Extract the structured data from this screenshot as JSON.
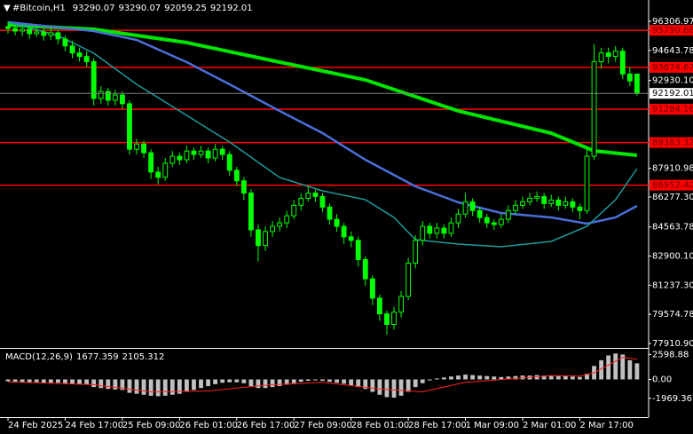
{
  "chart_data": {
    "type": "candlestick",
    "title": "#Bitcoin,H1",
    "candles": [
      [
        96000,
        96300,
        95600,
        95900
      ],
      [
        95900,
        96100,
        95500,
        95750
      ],
      [
        95750,
        96050,
        95450,
        95850
      ],
      [
        95850,
        96000,
        95300,
        95600
      ],
      [
        95600,
        96000,
        95400,
        95700
      ],
      [
        95700,
        95900,
        95200,
        95500
      ],
      [
        95500,
        95950,
        95250,
        95650
      ],
      [
        95650,
        95800,
        95000,
        95300
      ],
      [
        95300,
        95500,
        94600,
        94900
      ],
      [
        94900,
        95200,
        94200,
        94500
      ],
      [
        94500,
        94800,
        94000,
        94300
      ],
      [
        94300,
        94600,
        93700,
        94000
      ],
      [
        94000,
        94200,
        91500,
        91900
      ],
      [
        91900,
        92600,
        91600,
        92300
      ],
      [
        92300,
        92500,
        91500,
        91800
      ],
      [
        91800,
        92400,
        91500,
        92100
      ],
      [
        92100,
        92300,
        91300,
        91600
      ],
      [
        91600,
        91800,
        88700,
        89000
      ],
      [
        89000,
        89600,
        88700,
        89300
      ],
      [
        89300,
        89500,
        88500,
        88800
      ],
      [
        88800,
        89000,
        87300,
        87700
      ],
      [
        87700,
        88000,
        87000,
        87400
      ],
      [
        87400,
        88500,
        87200,
        88200
      ],
      [
        88200,
        88900,
        88000,
        88600
      ],
      [
        88600,
        88800,
        88100,
        88400
      ],
      [
        88400,
        89200,
        88200,
        88900
      ],
      [
        88900,
        89100,
        88400,
        88700
      ],
      [
        88700,
        89200,
        88500,
        88900
      ],
      [
        88900,
        89100,
        88200,
        88500
      ],
      [
        88500,
        89300,
        88300,
        89000
      ],
      [
        89000,
        89200,
        88400,
        88700
      ],
      [
        88700,
        88900,
        87500,
        87800
      ],
      [
        87800,
        88000,
        86900,
        87200
      ],
      [
        87200,
        87400,
        86100,
        86500
      ],
      [
        86500,
        86700,
        84000,
        84400
      ],
      [
        84400,
        84700,
        82600,
        83500
      ],
      [
        83500,
        84600,
        83200,
        84300
      ],
      [
        84300,
        84900,
        84000,
        84600
      ],
      [
        84600,
        85100,
        84300,
        84800
      ],
      [
        84800,
        85500,
        84500,
        85200
      ],
      [
        85200,
        86100,
        85000,
        85800
      ],
      [
        85800,
        86500,
        85500,
        86200
      ],
      [
        86200,
        86900,
        86000,
        86500
      ],
      [
        86500,
        86700,
        86000,
        86300
      ],
      [
        86300,
        86500,
        85400,
        85700
      ],
      [
        85700,
        85900,
        84700,
        85000
      ],
      [
        85000,
        85300,
        84300,
        84600
      ],
      [
        84600,
        84800,
        83600,
        84000
      ],
      [
        84000,
        84300,
        83400,
        83800
      ],
      [
        83800,
        84000,
        82300,
        82700
      ],
      [
        82700,
        82900,
        81200,
        81600
      ],
      [
        81600,
        81800,
        80100,
        80500
      ],
      [
        80500,
        80700,
        79200,
        79600
      ],
      [
        79600,
        79800,
        78400,
        79000
      ],
      [
        79000,
        80000,
        78700,
        79700
      ],
      [
        79700,
        80900,
        79400,
        80600
      ],
      [
        80600,
        82800,
        80400,
        82500
      ],
      [
        82500,
        84100,
        82200,
        83800
      ],
      [
        83800,
        84900,
        83500,
        84600
      ],
      [
        84600,
        84800,
        83900,
        84200
      ],
      [
        84200,
        84800,
        83900,
        84500
      ],
      [
        84500,
        84700,
        83900,
        84200
      ],
      [
        84200,
        85100,
        84000,
        84800
      ],
      [
        84800,
        85600,
        84500,
        85300
      ],
      [
        85300,
        86500,
        85100,
        86000
      ],
      [
        86000,
        86200,
        85200,
        85500
      ],
      [
        85500,
        85700,
        84800,
        85100
      ],
      [
        85100,
        85300,
        84500,
        84800
      ],
      [
        84800,
        85000,
        84400,
        84700
      ],
      [
        84700,
        85300,
        84500,
        85000
      ],
      [
        85000,
        85800,
        84800,
        85500
      ],
      [
        85500,
        86100,
        85300,
        85800
      ],
      [
        85800,
        86300,
        85600,
        86000
      ],
      [
        86000,
        86500,
        85800,
        86200
      ],
      [
        86200,
        86600,
        86000,
        86300
      ],
      [
        86300,
        86500,
        85600,
        85900
      ],
      [
        85900,
        86400,
        85700,
        86100
      ],
      [
        86100,
        86300,
        85500,
        85800
      ],
      [
        85800,
        86300,
        85600,
        86000
      ],
      [
        86000,
        86200,
        85400,
        85700
      ],
      [
        85700,
        85900,
        85000,
        85500
      ],
      [
        85500,
        89000,
        85300,
        88600
      ],
      [
        88600,
        95000,
        88400,
        94000
      ],
      [
        94000,
        94800,
        93600,
        94500
      ],
      [
        94500,
        94800,
        93900,
        94300
      ],
      [
        94300,
        94900,
        94000,
        94600
      ],
      [
        94600,
        94800,
        93000,
        93300
      ],
      [
        93300,
        93700,
        92600,
        92900
      ],
      [
        93290.07,
        93290.07,
        92059.25,
        92192.01
      ]
    ],
    "candle_color": "#00ff00",
    "ylim": [
      77657,
      97523
    ],
    "yticks": [
      {
        "value": 96306.97,
        "label": "96306.97"
      },
      {
        "value": 94643.78,
        "label": "94643.78"
      },
      {
        "value": 92930.1,
        "label": "92930.10"
      },
      {
        "value": 87910.98,
        "label": "87910.98"
      },
      {
        "value": 86277.3,
        "label": "86277.30"
      },
      {
        "value": 84563.78,
        "label": "84563.78"
      },
      {
        "value": 82900.1,
        "label": "82900.10"
      },
      {
        "value": 81237.3,
        "label": "81237.30"
      },
      {
        "value": 79574.78,
        "label": "79574.78"
      },
      {
        "value": 77910.9,
        "label": "77910.90"
      }
    ],
    "xticks": [
      {
        "value": 0,
        "label": "24 Feb 2025"
      },
      {
        "value": 8,
        "label": "24 Feb 17:00"
      },
      {
        "value": 16,
        "label": "25 Feb 09:00"
      },
      {
        "value": 24,
        "label": "26 Feb 01:00"
      },
      {
        "value": 32,
        "label": "26 Feb 17:00"
      },
      {
        "value": 40,
        "label": "27 Feb 09:00"
      },
      {
        "value": 48,
        "label": "28 Feb 01:00"
      },
      {
        "value": 56,
        "label": "28 Feb 17:00"
      },
      {
        "value": 64,
        "label": "1 Mar 09:00"
      },
      {
        "value": 72,
        "label": "2 Mar 01:00"
      },
      {
        "value": 80,
        "label": "2 Mar 17:00"
      }
    ],
    "levels": [
      95790.66,
      93674.67,
      91284.16,
      89383.32,
      {
        "value": 86952.4,
        "label": "86952.40"
      }
    ],
    "level_color": "#ff0000",
    "moving_averages": [
      {
        "color": "#00e600",
        "width": 4,
        "x": [
          0,
          12,
          25,
          38,
          50,
          63,
          76,
          82,
          88
        ],
        "values": [
          96104,
          95851,
          95091,
          93976,
          92962,
          91188,
          89921,
          88907,
          88654
        ]
      },
      {
        "color": "#4a6fd8",
        "width": 2.5,
        "x": [
          0,
          12,
          18,
          25,
          31,
          38,
          44,
          50,
          57,
          63,
          69,
          76,
          81,
          85,
          88
        ],
        "values": [
          96256,
          95749,
          95243,
          93976,
          92709,
          91188,
          89921,
          88400,
          86880,
          85968,
          85360,
          85107,
          84752,
          85107,
          85766
        ]
      },
      {
        "color": "#1f9a9a",
        "width": 1.5,
        "x": [
          0,
          7,
          12,
          18,
          25,
          31,
          38,
          44,
          50,
          54,
          57,
          63,
          69,
          76,
          81,
          85,
          88
        ],
        "values": [
          96256,
          95496,
          94483,
          92709,
          90935,
          89414,
          87387,
          86627,
          86120,
          85107,
          83839,
          83586,
          83434,
          83738,
          84600,
          86120,
          87894
        ]
      }
    ],
    "macd": {
      "title": "MACD(12,26,9)",
      "histogram": [
        -200,
        -250,
        -300,
        -300,
        -300,
        -350,
        -350,
        -350,
        -400,
        -450,
        -500,
        -550,
        -800,
        -900,
        -1000,
        -1050,
        -1100,
        -1400,
        -1500,
        -1600,
        -1700,
        -1750,
        -1700,
        -1600,
        -1500,
        -1300,
        -1100,
        -900,
        -700,
        -500,
        -350,
        -300,
        -300,
        -400,
        -700,
        -900,
        -900,
        -800,
        -700,
        -550,
        -400,
        -250,
        -150,
        -100,
        -150,
        -250,
        -350,
        -450,
        -600,
        -800,
        -1000,
        -1300,
        -1600,
        -1850,
        -1900,
        -1700,
        -1300,
        -800,
        -400,
        -100,
        100,
        200,
        300,
        400,
        500,
        450,
        400,
        350,
        300,
        250,
        300,
        350,
        400,
        400,
        450,
        400,
        400,
        350,
        350,
        300,
        250,
        600,
        1400,
        2000,
        2500,
        2700,
        2600,
        2000,
        1677.359
      ],
      "histogram_color": "#c0c0c0",
      "signal": {
        "color": "#ff2020",
        "x": [
          0,
          12,
          20,
          28,
          36,
          44,
          52,
          58,
          64,
          76,
          80,
          82,
          84,
          86,
          88
        ],
        "values": [
          -250,
          -550,
          -1300,
          -1200,
          -600,
          -300,
          -1000,
          -1300,
          -300,
          400,
          350,
          700,
          1500,
          2300,
          2105.312
        ]
      },
      "ylim": [
        -3935,
        3193
      ],
      "yticks": [
        2598.88,
        {
          "value": 0,
          "label": "0.00"
        },
        -1969.367
      ]
    }
  }
}
